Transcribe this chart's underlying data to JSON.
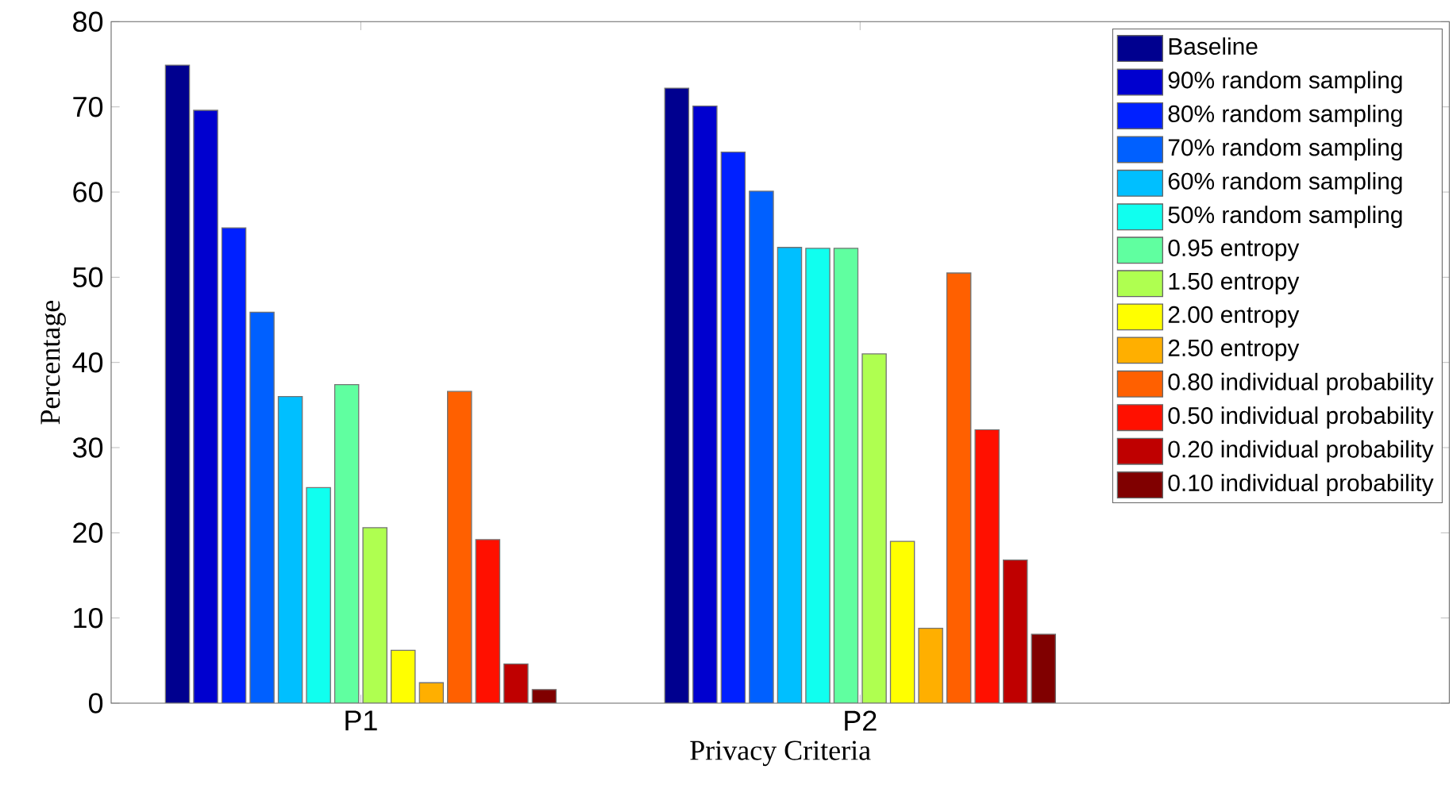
{
  "chart_data": {
    "type": "bar",
    "xlabel": "Privacy Criteria",
    "ylabel": "Percentage",
    "categories": [
      "P1",
      "P2"
    ],
    "ylim": [
      0,
      80
    ],
    "yticks": [
      0,
      10,
      20,
      30,
      40,
      50,
      60,
      70,
      80
    ],
    "legend": "top right",
    "series": [
      {
        "name": "Baseline",
        "color": "#00008f",
        "values": [
          74.9,
          72.2
        ]
      },
      {
        "name": "90% random sampling",
        "color": "#0000cf",
        "values": [
          69.6,
          70.1
        ]
      },
      {
        "name": "80% random sampling",
        "color": "#0020ff",
        "values": [
          55.8,
          64.7
        ]
      },
      {
        "name": "70% random sampling",
        "color": "#0060ff",
        "values": [
          45.9,
          60.1
        ]
      },
      {
        "name": "60% random sampling",
        "color": "#00bfff",
        "values": [
          36.0,
          53.5
        ]
      },
      {
        "name": "50% random sampling",
        "color": "#10ffef",
        "values": [
          25.3,
          53.4
        ]
      },
      {
        "name": "0.95 entropy",
        "color": "#60ffa0",
        "values": [
          37.4,
          53.4
        ]
      },
      {
        "name": "1.50 entropy",
        "color": "#afff50",
        "values": [
          20.6,
          41.0
        ]
      },
      {
        "name": "2.00 entropy",
        "color": "#ffff00",
        "values": [
          6.2,
          19.0
        ]
      },
      {
        "name": "2.50 entropy",
        "color": "#ffaf00",
        "values": [
          2.4,
          8.8
        ]
      },
      {
        "name": "0.80 individual probability",
        "color": "#ff6000",
        "values": [
          36.6,
          50.5
        ]
      },
      {
        "name": "0.50 individual probability",
        "color": "#ff1000",
        "values": [
          19.2,
          32.1
        ]
      },
      {
        "name": "0.20 individual probability",
        "color": "#bf0000",
        "values": [
          4.6,
          16.8
        ]
      },
      {
        "name": "0.10 individual probability",
        "color": "#800000",
        "values": [
          1.6,
          8.1
        ]
      }
    ]
  }
}
